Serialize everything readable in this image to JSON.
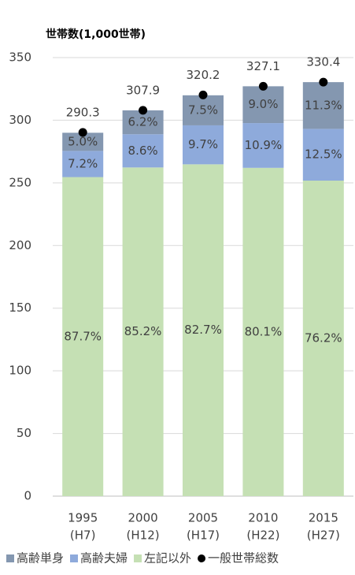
{
  "chart_data": {
    "type": "bar",
    "stacked": true,
    "y_axis_label": "世帯数(1,000世帯)",
    "categories": [
      "1995",
      "2000",
      "2005",
      "2010",
      "2015"
    ],
    "category_sublabels": [
      "(H7)",
      "(H12)",
      "(H17)",
      "(H22)",
      "(H27)"
    ],
    "series": [
      {
        "name": "高齢単身",
        "color": "#8497b0",
        "values": [
          14.5,
          19.1,
          24.0,
          29.4,
          37.3
        ],
        "share_labels": [
          "5.0%",
          "6.2%",
          "7.5%",
          "9.0%",
          "11.3%"
        ]
      },
      {
        "name": "高齢夫婦",
        "color": "#8eaadb",
        "values": [
          20.9,
          26.5,
          31.1,
          35.7,
          41.3
        ],
        "share_labels": [
          "7.2%",
          "8.6%",
          "9.7%",
          "10.9%",
          "12.5%"
        ]
      },
      {
        "name": "左記以外",
        "color": "#c5e0b4",
        "values": [
          254.6,
          262.3,
          264.8,
          262.0,
          251.8
        ],
        "share_labels": [
          "87.7%",
          "85.2%",
          "82.7%",
          "80.1%",
          "76.2%"
        ]
      },
      {
        "name": "一般世帯総数",
        "color": "#000000",
        "type": "scatter",
        "values": [
          290.3,
          307.9,
          320.2,
          327.1,
          330.4
        ]
      }
    ],
    "ylim": [
      0,
      350
    ],
    "yticks": [
      0,
      50,
      100,
      150,
      200,
      250,
      300,
      350
    ],
    "grid": true
  }
}
